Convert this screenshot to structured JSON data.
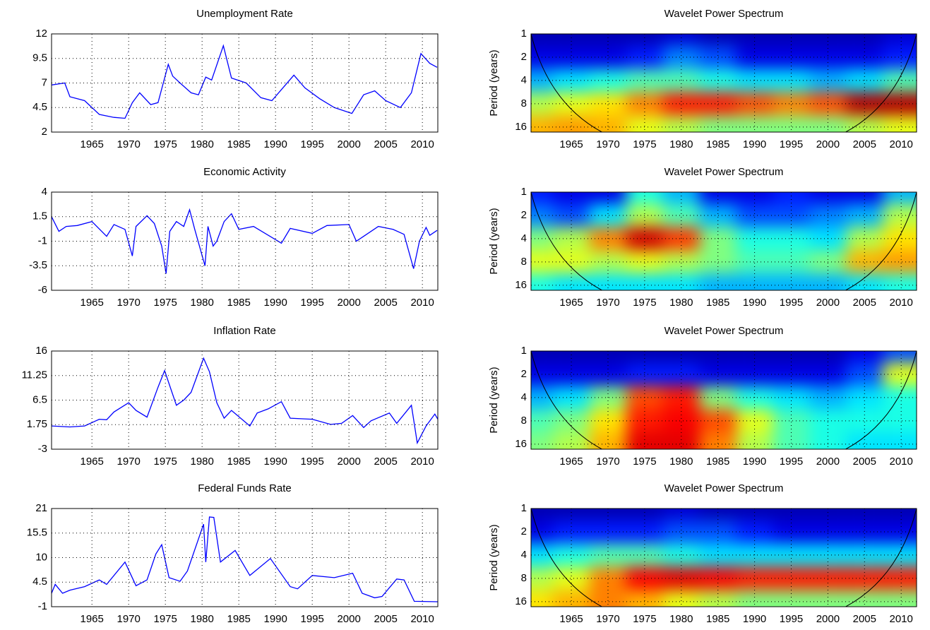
{
  "chart_data": [
    {
      "type": "line",
      "title": "Unemployment Rate",
      "color": "#0000ff",
      "grid": true,
      "xlim": [
        1959.5,
        2012.1
      ],
      "xticks": [
        1965,
        1970,
        1975,
        1980,
        1985,
        1990,
        1995,
        2000,
        2005,
        2010
      ],
      "ylim": [
        2,
        12
      ],
      "yticks": [
        2,
        4.5,
        7,
        9.5,
        12
      ],
      "x": [
        1959.5,
        1961.3,
        1962,
        1964,
        1966,
        1968,
        1969.5,
        1970.5,
        1971.5,
        1973,
        1974,
        1975.4,
        1976,
        1977,
        1978.5,
        1979.5,
        1980.5,
        1981.3,
        1982.9,
        1984,
        1986,
        1988,
        1989.5,
        1992.5,
        1994,
        1996,
        1998,
        2000.4,
        2002,
        2003.5,
        2005,
        2007,
        2008.5,
        2009.8,
        2011,
        2012
      ],
      "values": [
        6.8,
        7.0,
        5.6,
        5.2,
        3.8,
        3.5,
        3.4,
        5.0,
        6.0,
        4.8,
        5.0,
        8.9,
        7.7,
        7.0,
        6.0,
        5.8,
        7.6,
        7.3,
        10.8,
        7.5,
        7.0,
        5.5,
        5.2,
        7.8,
        6.5,
        5.4,
        4.5,
        3.9,
        5.8,
        6.2,
        5.2,
        4.5,
        6.0,
        10.0,
        9.0,
        8.6
      ]
    },
    {
      "type": "heatmap",
      "title": "Wavelet Power Spectrum",
      "ylabel": "Period (years)",
      "colormap": "jet",
      "grid": true,
      "log_base": 2,
      "yreverse": true,
      "xlim": [
        1959.5,
        2012.1
      ],
      "xticks": [
        1965,
        1970,
        1975,
        1980,
        1985,
        1990,
        1995,
        2000,
        2005,
        2010
      ],
      "ylim": [
        1,
        18.6
      ],
      "yticks": [
        1,
        2,
        4,
        8,
        16
      ],
      "x": [
        1960,
        1965,
        1970,
        1975,
        1980,
        1985,
        1990,
        1995,
        2000,
        2005,
        2010
      ],
      "y": [
        1,
        2,
        4,
        8,
        16
      ],
      "values": [
        [
          0.05,
          0.05,
          0.05,
          0.05,
          0.08,
          0.05,
          0.05,
          0.05,
          0.05,
          0.05,
          0.08
        ],
        [
          0.1,
          0.1,
          0.1,
          0.15,
          0.25,
          0.2,
          0.1,
          0.1,
          0.1,
          0.1,
          0.15
        ],
        [
          0.3,
          0.35,
          0.4,
          0.45,
          0.45,
          0.4,
          0.35,
          0.35,
          0.3,
          0.35,
          0.45
        ],
        [
          0.55,
          0.6,
          0.65,
          0.75,
          0.85,
          0.85,
          0.8,
          0.75,
          0.8,
          0.95,
          0.95
        ],
        [
          0.7,
          0.72,
          0.7,
          0.6,
          0.55,
          0.5,
          0.5,
          0.5,
          0.5,
          0.55,
          0.6
        ]
      ]
    },
    {
      "type": "line",
      "title": "Economic Activity",
      "color": "#0000ff",
      "grid": true,
      "xlim": [
        1959.5,
        2012.1
      ],
      "xticks": [
        1965,
        1970,
        1975,
        1980,
        1985,
        1990,
        1995,
        2000,
        2005,
        2010
      ],
      "ylim": [
        -6,
        4
      ],
      "yticks": [
        -6,
        -3.5,
        -1,
        1.5,
        4
      ],
      "x": [
        1959.5,
        1960.5,
        1961.5,
        1963,
        1965,
        1967,
        1968,
        1969.5,
        1970.5,
        1971,
        1972.5,
        1973.5,
        1974.5,
        1975.1,
        1975.6,
        1976.5,
        1977.5,
        1978.3,
        1979,
        1980.4,
        1980.8,
        1981.5,
        1982,
        1983,
        1984,
        1985,
        1987,
        1990.8,
        1992,
        1995,
        1997,
        2000,
        2001,
        2002,
        2004,
        2006,
        2007.5,
        2008.8,
        2009.6,
        2010.5,
        2011,
        2012
      ],
      "values": [
        1.5,
        0.0,
        0.5,
        0.6,
        1.0,
        -0.5,
        0.7,
        0.2,
        -2.5,
        0.5,
        1.6,
        0.8,
        -1.5,
        -4.3,
        0.0,
        1.0,
        0.5,
        2.2,
        0.2,
        -3.5,
        0.5,
        -1.5,
        -1.0,
        1.0,
        1.8,
        0.2,
        0.5,
        -1.2,
        0.3,
        -0.2,
        0.6,
        0.7,
        -1.0,
        -0.5,
        0.5,
        0.2,
        -0.3,
        -3.8,
        -1.0,
        0.4,
        -0.4,
        0.1
      ]
    },
    {
      "type": "heatmap",
      "title": "Wavelet Power Spectrum",
      "ylabel": "Period (years)",
      "colormap": "jet",
      "grid": true,
      "log_base": 2,
      "yreverse": true,
      "xlim": [
        1959.5,
        2012.1
      ],
      "xticks": [
        1965,
        1970,
        1975,
        1980,
        1985,
        1990,
        1995,
        2000,
        2005,
        2010
      ],
      "ylim": [
        1,
        18.6
      ],
      "yticks": [
        1,
        2,
        4,
        8,
        16
      ],
      "x": [
        1960,
        1965,
        1970,
        1975,
        1980,
        1985,
        1990,
        1995,
        2000,
        2005,
        2010
      ],
      "y": [
        1,
        2,
        4,
        8,
        16
      ],
      "values": [
        [
          0.15,
          0.1,
          0.1,
          0.4,
          0.3,
          0.1,
          0.1,
          0.15,
          0.1,
          0.1,
          0.3
        ],
        [
          0.25,
          0.2,
          0.35,
          0.55,
          0.45,
          0.3,
          0.2,
          0.2,
          0.25,
          0.3,
          0.55
        ],
        [
          0.5,
          0.55,
          0.75,
          0.92,
          0.82,
          0.5,
          0.4,
          0.4,
          0.35,
          0.55,
          0.65
        ],
        [
          0.6,
          0.6,
          0.55,
          0.6,
          0.55,
          0.5,
          0.45,
          0.45,
          0.5,
          0.7,
          0.72
        ],
        [
          0.4,
          0.35,
          0.35,
          0.35,
          0.35,
          0.3,
          0.3,
          0.3,
          0.3,
          0.35,
          0.4
        ]
      ]
    },
    {
      "type": "line",
      "title": "Inflation Rate",
      "color": "#0000ff",
      "grid": true,
      "xlim": [
        1959.5,
        2012.1
      ],
      "xticks": [
        1965,
        1970,
        1975,
        1980,
        1985,
        1990,
        1995,
        2000,
        2005,
        2010
      ],
      "ylim": [
        -3,
        16
      ],
      "yticks": [
        -3,
        1.75,
        6.5,
        11.25,
        16
      ],
      "x": [
        1959.5,
        1962,
        1964,
        1966,
        1967,
        1968,
        1970,
        1971,
        1972.5,
        1974,
        1974.9,
        1976.5,
        1977.5,
        1978.5,
        1980.2,
        1981,
        1982,
        1983,
        1984,
        1986.5,
        1987.5,
        1989,
        1990.8,
        1992,
        1995,
        1997.5,
        1999,
        2000.5,
        2002,
        2003,
        2005.5,
        2006.5,
        2008.5,
        2009.3,
        2010.5,
        2011.7,
        2012.1
      ],
      "values": [
        1.5,
        1.3,
        1.5,
        2.8,
        2.7,
        4.2,
        6.0,
        4.5,
        3.2,
        9.0,
        12.2,
        5.5,
        6.5,
        8.0,
        14.6,
        12.0,
        6.0,
        3.0,
        4.5,
        1.5,
        4.0,
        4.8,
        6.2,
        3.0,
        2.8,
        1.8,
        2.0,
        3.5,
        1.2,
        2.5,
        4.0,
        2.0,
        5.5,
        -1.8,
        1.5,
        3.8,
        2.8
      ]
    },
    {
      "type": "heatmap",
      "title": "Wavelet Power Spectrum",
      "ylabel": "Period (years)",
      "colormap": "jet",
      "grid": true,
      "log_base": 2,
      "yreverse": true,
      "xlim": [
        1959.5,
        2012.1
      ],
      "xticks": [
        1965,
        1970,
        1975,
        1980,
        1985,
        1990,
        1995,
        2000,
        2005,
        2010
      ],
      "ylim": [
        1,
        18.6
      ],
      "yticks": [
        1,
        2,
        4,
        8,
        16
      ],
      "x": [
        1960,
        1965,
        1970,
        1975,
        1980,
        1985,
        1990,
        1995,
        2000,
        2005,
        2010
      ],
      "y": [
        1,
        2,
        4,
        8,
        16
      ],
      "values": [
        [
          0.05,
          0.05,
          0.05,
          0.05,
          0.05,
          0.05,
          0.05,
          0.05,
          0.05,
          0.1,
          0.2
        ],
        [
          0.1,
          0.1,
          0.1,
          0.15,
          0.15,
          0.1,
          0.1,
          0.1,
          0.1,
          0.2,
          0.6
        ],
        [
          0.3,
          0.35,
          0.5,
          0.8,
          0.85,
          0.5,
          0.4,
          0.35,
          0.3,
          0.35,
          0.4
        ],
        [
          0.45,
          0.5,
          0.65,
          0.85,
          0.88,
          0.8,
          0.6,
          0.45,
          0.4,
          0.4,
          0.4
        ],
        [
          0.5,
          0.55,
          0.7,
          0.9,
          0.9,
          0.75,
          0.55,
          0.45,
          0.4,
          0.35,
          0.35
        ]
      ]
    },
    {
      "type": "line",
      "title": "Federal Funds Rate",
      "color": "#0000ff",
      "grid": true,
      "xlim": [
        1959.5,
        2012.1
      ],
      "xticks": [
        1965,
        1970,
        1975,
        1980,
        1985,
        1990,
        1995,
        2000,
        2005,
        2010
      ],
      "ylim": [
        -1,
        21
      ],
      "yticks": [
        -1,
        4.5,
        10,
        15.5,
        21
      ],
      "x": [
        1959.5,
        1960,
        1961,
        1962,
        1964,
        1966,
        1967,
        1969.5,
        1971,
        1972.5,
        1973.7,
        1974.5,
        1975.5,
        1977,
        1978,
        1980.2,
        1980.5,
        1981,
        1981.6,
        1982.5,
        1984.5,
        1986.5,
        1989.3,
        1992,
        1993,
        1995,
        1998,
        2000.5,
        2001.8,
        2003.5,
        2004.5,
        2006.5,
        2007.5,
        2008.9,
        2012.1
      ],
      "values": [
        2.0,
        4.0,
        2.0,
        2.7,
        3.5,
        5.0,
        4.0,
        9.0,
        3.7,
        5.0,
        10.8,
        12.9,
        5.5,
        4.7,
        7.0,
        17.5,
        9.0,
        19.1,
        19.0,
        9.0,
        11.6,
        6.0,
        9.8,
        3.5,
        3.0,
        6.0,
        5.5,
        6.5,
        2.0,
        1.0,
        1.3,
        5.2,
        5.0,
        0.2,
        0.1
      ]
    },
    {
      "type": "heatmap",
      "title": "Wavelet Power Spectrum",
      "ylabel": "Period (years)",
      "colormap": "jet",
      "grid": true,
      "log_base": 2,
      "yreverse": true,
      "xlim": [
        1959.5,
        2012.1
      ],
      "xticks": [
        1965,
        1970,
        1975,
        1980,
        1985,
        1990,
        1995,
        2000,
        2005,
        2010
      ],
      "ylim": [
        1,
        18.6
      ],
      "yticks": [
        1,
        2,
        4,
        8,
        16
      ],
      "x": [
        1960,
        1965,
        1970,
        1975,
        1980,
        1985,
        1990,
        1995,
        2000,
        2005,
        2010
      ],
      "y": [
        1,
        2,
        4,
        8,
        16
      ],
      "values": [
        [
          0.05,
          0.05,
          0.05,
          0.05,
          0.08,
          0.05,
          0.05,
          0.05,
          0.05,
          0.05,
          0.05
        ],
        [
          0.1,
          0.15,
          0.15,
          0.15,
          0.2,
          0.2,
          0.15,
          0.1,
          0.1,
          0.1,
          0.1
        ],
        [
          0.35,
          0.4,
          0.45,
          0.45,
          0.4,
          0.35,
          0.35,
          0.35,
          0.35,
          0.35,
          0.35
        ],
        [
          0.55,
          0.6,
          0.75,
          0.88,
          0.9,
          0.88,
          0.85,
          0.85,
          0.85,
          0.85,
          0.85
        ],
        [
          0.65,
          0.7,
          0.75,
          0.7,
          0.6,
          0.55,
          0.5,
          0.5,
          0.5,
          0.5,
          0.5
        ]
      ]
    }
  ]
}
